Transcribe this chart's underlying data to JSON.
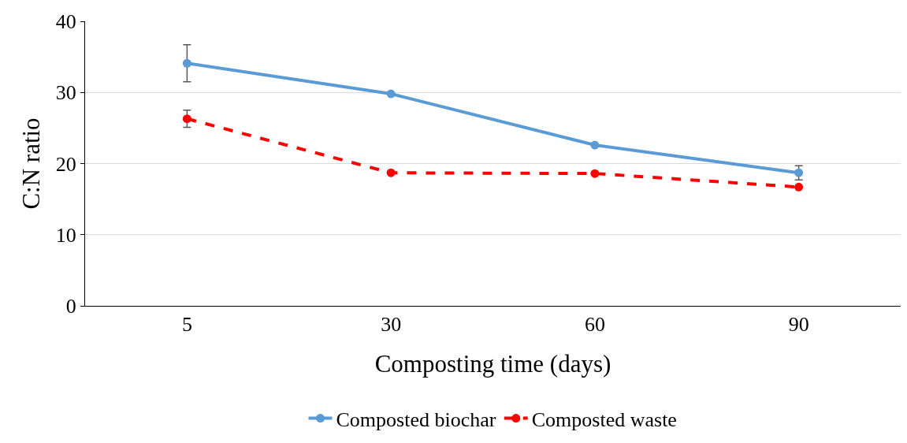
{
  "chart_data": {
    "type": "line",
    "xlabel": "Composting time (days)",
    "ylabel": "C:N ratio",
    "categories": [
      "5",
      "30",
      "60",
      "90"
    ],
    "series": [
      {
        "name": "Composted biochar",
        "color": "#5b9bd5",
        "values": [
          34.1,
          29.8,
          22.6,
          18.7
        ],
        "errors": [
          2.6,
          null,
          null,
          1.0
        ],
        "line_style": "solid"
      },
      {
        "name": "Composted waste",
        "color": "#ff0000",
        "values": [
          26.3,
          18.7,
          18.6,
          16.7
        ],
        "errors": [
          1.2,
          null,
          null,
          null
        ],
        "line_style": "dashed"
      }
    ],
    "ylim": [
      0,
      40
    ],
    "yticks": [
      0,
      10,
      20,
      30,
      40
    ],
    "grid": "y",
    "legend": "bottom",
    "marker": "circle"
  }
}
